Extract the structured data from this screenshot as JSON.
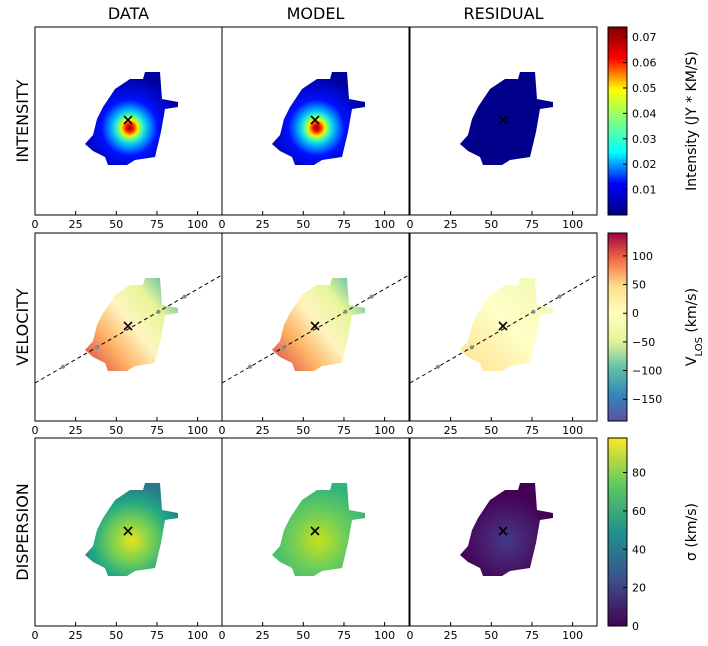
{
  "column_titles": [
    "DATA",
    "MODEL",
    "RESIDUAL"
  ],
  "row_titles": [
    "INTENSITY",
    "VELOCITY",
    "DISPERSION"
  ],
  "chart_data": [
    {
      "type": "image",
      "xlim": [
        0,
        115
      ],
      "xticks": [
        0,
        25,
        50,
        75,
        100
      ],
      "colorbar": {
        "label_parts": [
          "Intensity (JY * KM/S)"
        ],
        "lim": [
          0,
          0.074
        ],
        "ticks": [
          0.01,
          0.02,
          0.03,
          0.04,
          0.05,
          0.06,
          0.07
        ],
        "colormap": [
          "#7f0000",
          "#ff0000",
          "#ffff00",
          "#7fff7f",
          "#00ffff",
          "#0000ff",
          "#00007f"
        ]
      }
    },
    {
      "type": "image",
      "xlim": [
        0,
        115
      ],
      "xticks": [
        0,
        25,
        50,
        75,
        100
      ],
      "colorbar": {
        "label_parts": [
          "V",
          "LOS",
          " (km/s)"
        ],
        "lim": [
          -188,
          140
        ],
        "ticks": [
          100,
          50,
          0,
          {
            "value": -50,
            "label": "−50"
          },
          {
            "value": -100,
            "label": "−100"
          },
          {
            "value": -150,
            "label": "−150"
          }
        ],
        "colormap": [
          "#9e0142",
          "#f46d43",
          "#fee08b",
          "#ffffbf",
          "#e6f598",
          "#66c2a5",
          "#3288bd",
          "#5e4fa2"
        ]
      }
    },
    {
      "type": "image",
      "xlim": [
        0,
        115
      ],
      "xticks": [
        0,
        25,
        50,
        75,
        100
      ],
      "colorbar": {
        "label_parts": [
          "σ (km/s)"
        ],
        "lim": [
          0,
          98
        ],
        "ticks": [
          0,
          20,
          40,
          60,
          80
        ],
        "colormap": [
          "#fde725",
          "#5ec962",
          "#21918c",
          "#3b528b",
          "#440154"
        ]
      }
    }
  ]
}
